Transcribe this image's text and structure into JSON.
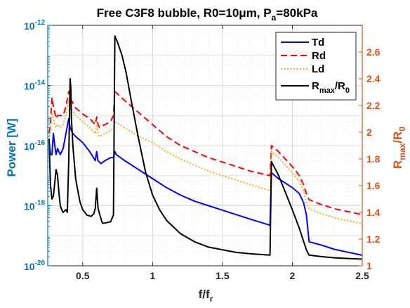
{
  "chart_data": {
    "type": "line",
    "title": "Free C3F8 bubble, R0=10μm, P",
    "title_sub": "a",
    "title_tail": "=80kPa",
    "xlabel": "f/f",
    "xlabel_sub": "r",
    "ylabel_left": "Power [W]",
    "ylabel_right_base": "R",
    "ylabel_right_sub1": "max",
    "ylabel_right_mid": "/R",
    "ylabel_right_sub2": "0",
    "xlim": [
      0.25,
      2.5
    ],
    "ylim_left_log10": [
      -20,
      -12
    ],
    "ylim_right": [
      1.0,
      2.8
    ],
    "left_scale": "log",
    "grid": true,
    "legend_position": "top-right",
    "colors": {
      "left_axis": "#0072BD",
      "right_axis": "#D95319"
    },
    "x_ticks": [
      "0.5",
      "1",
      "1.5",
      "2",
      "2.5"
    ],
    "x_tick_values": [
      0.5,
      1,
      1.5,
      2,
      2.5
    ],
    "y_left_ticks": [
      {
        "base": "10",
        "exp": "-12",
        "value": -12
      },
      {
        "base": "10",
        "exp": "-14",
        "value": -14
      },
      {
        "base": "10",
        "exp": "-16",
        "value": -16
      },
      {
        "base": "10",
        "exp": "-18",
        "value": -18
      },
      {
        "base": "10",
        "exp": "-20",
        "value": -20
      }
    ],
    "y_right_ticks": [
      "1",
      "1.2",
      "1.4",
      "1.6",
      "1.8",
      "2",
      "2.2",
      "2.4",
      "2.6"
    ],
    "y_right_tick_values": [
      1.0,
      1.2,
      1.4,
      1.6,
      1.8,
      2.0,
      2.2,
      2.4,
      2.6
    ],
    "series": [
      {
        "name": "Td",
        "axis": "left",
        "color": "#0000FF",
        "dash": "solid",
        "points": [
          [
            0.26,
            -15.9
          ],
          [
            0.27,
            -16.3
          ],
          [
            0.28,
            -16.3
          ],
          [
            0.29,
            -15.6
          ],
          [
            0.3,
            -16.0
          ],
          [
            0.31,
            -16.3
          ],
          [
            0.32,
            -16.1
          ],
          [
            0.34,
            -16.3
          ],
          [
            0.36,
            -16.1
          ],
          [
            0.38,
            -15.6
          ],
          [
            0.4,
            -15.1
          ],
          [
            0.41,
            -15.4
          ],
          [
            0.43,
            -15.6
          ],
          [
            0.45,
            -15.7
          ],
          [
            0.5,
            -15.9
          ],
          [
            0.55,
            -16.2
          ],
          [
            0.59,
            -16.5
          ],
          [
            0.6,
            -16.2
          ],
          [
            0.61,
            -16.5
          ],
          [
            0.63,
            -16.6
          ],
          [
            0.66,
            -16.5
          ],
          [
            0.7,
            -16.4
          ],
          [
            0.72,
            -16.4
          ],
          [
            0.73,
            -16.2
          ],
          [
            0.74,
            -16.3
          ],
          [
            0.8,
            -16.5
          ],
          [
            0.9,
            -16.8
          ],
          [
            1.0,
            -17.1
          ],
          [
            1.1,
            -17.4
          ],
          [
            1.2,
            -17.65
          ],
          [
            1.3,
            -17.85
          ],
          [
            1.4,
            -18.0
          ],
          [
            1.5,
            -18.15
          ],
          [
            1.6,
            -18.3
          ],
          [
            1.7,
            -18.45
          ],
          [
            1.84,
            -18.65
          ],
          [
            1.85,
            -16.9
          ],
          [
            1.9,
            -17.1
          ],
          [
            2.0,
            -17.4
          ],
          [
            2.05,
            -17.6
          ],
          [
            2.08,
            -17.9
          ],
          [
            2.1,
            -18.3
          ],
          [
            2.12,
            -19.2
          ],
          [
            2.2,
            -19.3
          ],
          [
            2.3,
            -19.45
          ],
          [
            2.4,
            -19.55
          ],
          [
            2.5,
            -19.65
          ]
        ]
      },
      {
        "name": "Rd",
        "axis": "left",
        "color": "#FF0000",
        "dash": "dashed",
        "points": [
          [
            0.26,
            -15.6
          ],
          [
            0.27,
            -15.2
          ],
          [
            0.28,
            -14.4
          ],
          [
            0.29,
            -14.7
          ],
          [
            0.3,
            -14.9
          ],
          [
            0.31,
            -15.1
          ],
          [
            0.32,
            -15.0
          ],
          [
            0.34,
            -15.0
          ],
          [
            0.36,
            -15.0
          ],
          [
            0.38,
            -14.7
          ],
          [
            0.4,
            -14.2
          ],
          [
            0.42,
            -14.5
          ],
          [
            0.45,
            -14.75
          ],
          [
            0.5,
            -14.95
          ],
          [
            0.55,
            -15.1
          ],
          [
            0.59,
            -15.3
          ],
          [
            0.6,
            -15.05
          ],
          [
            0.61,
            -15.3
          ],
          [
            0.62,
            -15.4
          ],
          [
            0.66,
            -15.3
          ],
          [
            0.7,
            -15.2
          ],
          [
            0.72,
            -15.0
          ],
          [
            0.73,
            -14.2
          ],
          [
            0.8,
            -14.5
          ],
          [
            0.9,
            -14.9
          ],
          [
            1.0,
            -15.3
          ],
          [
            1.1,
            -15.7
          ],
          [
            1.2,
            -16.0
          ],
          [
            1.3,
            -16.2
          ],
          [
            1.4,
            -16.4
          ],
          [
            1.5,
            -16.55
          ],
          [
            1.6,
            -16.7
          ],
          [
            1.7,
            -16.85
          ],
          [
            1.84,
            -17.0
          ],
          [
            1.85,
            -16.0
          ],
          [
            1.9,
            -16.2
          ],
          [
            2.0,
            -16.7
          ],
          [
            2.05,
            -17.0
          ],
          [
            2.08,
            -17.3
          ],
          [
            2.1,
            -17.6
          ],
          [
            2.12,
            -17.8
          ],
          [
            2.2,
            -17.95
          ],
          [
            2.3,
            -18.1
          ],
          [
            2.4,
            -18.2
          ],
          [
            2.5,
            -18.3
          ]
        ]
      },
      {
        "name": "Ld",
        "axis": "left",
        "color": "#EDB120",
        "dash": "dotted",
        "points": [
          [
            0.26,
            -15.8
          ],
          [
            0.27,
            -15.5
          ],
          [
            0.28,
            -14.9
          ],
          [
            0.29,
            -15.1
          ],
          [
            0.3,
            -15.3
          ],
          [
            0.31,
            -15.4
          ],
          [
            0.32,
            -15.3
          ],
          [
            0.34,
            -15.4
          ],
          [
            0.36,
            -15.3
          ],
          [
            0.38,
            -15.0
          ],
          [
            0.4,
            -14.5
          ],
          [
            0.42,
            -14.8
          ],
          [
            0.45,
            -15.0
          ],
          [
            0.5,
            -15.2
          ],
          [
            0.55,
            -15.4
          ],
          [
            0.59,
            -15.6
          ],
          [
            0.6,
            -15.3
          ],
          [
            0.61,
            -15.6
          ],
          [
            0.62,
            -15.7
          ],
          [
            0.66,
            -15.6
          ],
          [
            0.7,
            -15.5
          ],
          [
            0.72,
            -15.4
          ],
          [
            0.73,
            -15.2
          ],
          [
            0.8,
            -15.4
          ],
          [
            0.9,
            -15.7
          ],
          [
            1.0,
            -15.9
          ],
          [
            1.1,
            -16.2
          ],
          [
            1.2,
            -16.45
          ],
          [
            1.3,
            -16.65
          ],
          [
            1.4,
            -16.85
          ],
          [
            1.5,
            -17.0
          ],
          [
            1.6,
            -17.15
          ],
          [
            1.7,
            -17.3
          ],
          [
            1.84,
            -17.5
          ],
          [
            1.85,
            -16.2
          ],
          [
            1.9,
            -16.4
          ],
          [
            2.0,
            -16.9
          ],
          [
            2.05,
            -17.2
          ],
          [
            2.08,
            -17.5
          ],
          [
            2.1,
            -17.9
          ],
          [
            2.12,
            -18.1
          ],
          [
            2.2,
            -18.25
          ],
          [
            2.3,
            -18.4
          ],
          [
            2.4,
            -18.5
          ],
          [
            2.5,
            -18.6
          ]
        ]
      },
      {
        "name": "R",
        "name_sub1": "max",
        "name_mid": "/R",
        "name_sub2": "0",
        "axis": "right",
        "color": "#000000",
        "dash": "solid",
        "points": [
          [
            0.26,
            1.95
          ],
          [
            0.265,
            1.75
          ],
          [
            0.27,
            1.6
          ],
          [
            0.28,
            1.5
          ],
          [
            0.29,
            1.52
          ],
          [
            0.3,
            1.62
          ],
          [
            0.31,
            1.72
          ],
          [
            0.32,
            1.68
          ],
          [
            0.33,
            1.55
          ],
          [
            0.34,
            1.45
          ],
          [
            0.35,
            1.42
          ],
          [
            0.36,
            1.4
          ],
          [
            0.37,
            1.41
          ],
          [
            0.38,
            1.42
          ],
          [
            0.39,
            1.4
          ],
          [
            0.4,
            1.78
          ],
          [
            0.41,
            2.4
          ],
          [
            0.415,
            2.33
          ],
          [
            0.42,
            2.1
          ],
          [
            0.43,
            1.9
          ],
          [
            0.45,
            1.65
          ],
          [
            0.48,
            1.48
          ],
          [
            0.5,
            1.42
          ],
          [
            0.53,
            1.38
          ],
          [
            0.56,
            1.37
          ],
          [
            0.58,
            1.39
          ],
          [
            0.59,
            1.43
          ],
          [
            0.6,
            1.58
          ],
          [
            0.61,
            1.43
          ],
          [
            0.62,
            1.39
          ],
          [
            0.64,
            1.32
          ],
          [
            0.66,
            1.32
          ],
          [
            0.7,
            1.33
          ],
          [
            0.72,
            1.38
          ],
          [
            0.73,
            2.72
          ],
          [
            0.75,
            2.67
          ],
          [
            0.78,
            2.58
          ],
          [
            0.81,
            2.45
          ],
          [
            0.85,
            2.22
          ],
          [
            0.9,
            1.95
          ],
          [
            0.95,
            1.7
          ],
          [
            1.0,
            1.53
          ],
          [
            1.05,
            1.42
          ],
          [
            1.1,
            1.34
          ],
          [
            1.2,
            1.24
          ],
          [
            1.3,
            1.18
          ],
          [
            1.4,
            1.14
          ],
          [
            1.5,
            1.12
          ],
          [
            1.6,
            1.1
          ],
          [
            1.7,
            1.09
          ],
          [
            1.84,
            1.08
          ],
          [
            1.85,
            1.78
          ],
          [
            1.9,
            1.68
          ],
          [
            1.95,
            1.55
          ],
          [
            2.0,
            1.42
          ],
          [
            2.05,
            1.28
          ],
          [
            2.1,
            1.12
          ],
          [
            2.12,
            1.08
          ],
          [
            2.2,
            1.07
          ],
          [
            2.3,
            1.06
          ],
          [
            2.4,
            1.055
          ],
          [
            2.5,
            1.05
          ]
        ]
      }
    ]
  }
}
